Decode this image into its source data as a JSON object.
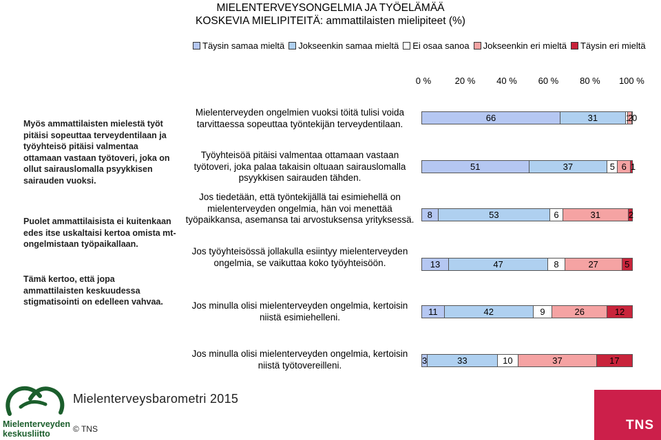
{
  "title_line1": "MIELENTERVEYSONGELMIA JA TYÖELÄMÄÄ",
  "title_line2": "KOSKEVIA MIELIPITEITÄ: ammattilaisten mielipiteet (%)",
  "colors": {
    "Täysin samaa mieltä": "#b5c7f2",
    "Jokseenkin samaa mieltä": "#afd0f0",
    "Ei osaa sanoa": "#ffffff",
    "Jokseenkin eri mieltä": "#f5a3a3",
    "Täysin eri mieltä": "#c8243b"
  },
  "side_notes": [
    "Myös ammattilaisten mielestä työt pitäisi sopeuttaa terveydentilaan ja työyhteisö pitäisi valmentaa ottamaan vastaan työtoveri, joka on ollut sairauslomalla psyykkisen sairauden vuoksi.",
    "Puolet ammattilaisista ei kuitenkaan edes itse uskaltaisi kertoa omista mt-ongelmistaan työpaikallaan.",
    "Tämä kertoo, että jopa ammattilaisten keskuudessa stigmatisointi on edelleen vahvaa."
  ],
  "footer_title": "Mielenterveysbarometri 2015",
  "copyright": "© TNS",
  "logo_left_text": [
    "Mielenterveyden",
    "keskusliitto"
  ],
  "logo_right_text": "TNS",
  "chart_data": {
    "type": "bar",
    "orientation": "horizontal",
    "stacked": true,
    "xlim": [
      0,
      100
    ],
    "x_ticks": [
      "0 %",
      "20 %",
      "40 %",
      "60 %",
      "80 %",
      "100 %"
    ],
    "legend_position": "top",
    "categories": [
      "Mielenterveyden ongelmien vuoksi töitä tulisi voida tarvittaessa sopeuttaa työntekijän terveydentilaan.",
      "Työyhteisöä pitäisi valmentaa ottamaan vastaan työtoveri, joka palaa takaisin oltuaan sairauslomalla psyykkisen sairauden tähden.",
      "Jos tiedetään, että työntekijällä tai esimiehellä on mielenterveyden ongelmia, hän voi menettää työpaikkansa, asemansa tai arvostuksensa yrityksessä.",
      "Jos työyhteisössä jollakulla esiintyy mielenterveyden ongelmia, se vaikuttaa koko työyhteisöön.",
      "Jos minulla olisi mielenterveyden ongelmia, kertoisin niistä esimiehelleni.",
      "Jos minulla olisi mielenterveyden ongelmia, kertoisin niistä työtovereilleni."
    ],
    "series": [
      {
        "name": "Täysin samaa mieltä",
        "values": [
          66,
          51,
          8,
          13,
          11,
          3
        ]
      },
      {
        "name": "Jokseenkin samaa mieltä",
        "values": [
          31,
          37,
          53,
          47,
          42,
          33
        ]
      },
      {
        "name": "Ei osaa sanoa",
        "values": [
          1,
          5,
          6,
          8,
          9,
          10
        ]
      },
      {
        "name": "Jokseenkin eri mieltä",
        "values": [
          2,
          6,
          31,
          27,
          26,
          37
        ]
      },
      {
        "name": "Täysin eri mieltä",
        "values": [
          0,
          1,
          2,
          5,
          12,
          17
        ]
      }
    ]
  }
}
